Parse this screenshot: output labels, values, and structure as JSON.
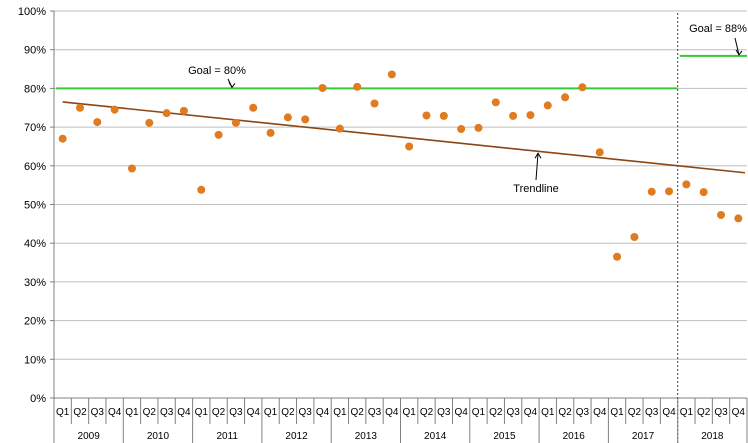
{
  "chart_data": {
    "type": "scatter",
    "y_axis": {
      "ticks": [
        "0%",
        "10%",
        "20%",
        "30%",
        "40%",
        "50%",
        "60%",
        "70%",
        "80%",
        "90%",
        "100%"
      ],
      "ylim": [
        0,
        100
      ],
      "grid": true
    },
    "quarters": [
      "Q1",
      "Q2",
      "Q3",
      "Q4"
    ],
    "years": [
      "2009",
      "2010",
      "2011",
      "2012",
      "2013",
      "2014",
      "2015",
      "2016",
      "2017",
      "2018"
    ],
    "series": [
      {
        "color": "#E07B1F",
        "values": [
          67.0,
          75.0,
          71.3,
          74.5,
          59.3,
          71.1,
          73.6,
          74.2,
          53.8,
          68.0,
          71.1,
          75.0,
          68.5,
          72.5,
          72.0,
          80.1,
          69.6,
          80.4,
          76.1,
          83.6,
          65.0,
          73.0,
          72.9,
          69.5,
          69.8,
          76.4,
          72.9,
          73.1,
          75.6,
          77.7,
          80.3,
          63.5,
          36.5,
          41.6,
          53.3,
          53.4,
          55.2,
          53.2,
          47.3,
          46.4
        ]
      }
    ],
    "trendline": {
      "label": "Trendline",
      "color": "#8B4513",
      "start": 76.5,
      "end": 58.2
    },
    "goals": [
      {
        "label": "Goal = 80%",
        "value": 80,
        "from_quarter": 1,
        "to_quarter": 36,
        "color": "#33CC33"
      },
      {
        "label": "Goal = 88%",
        "value": 88.4,
        "from_quarter": 37,
        "to_quarter": 40,
        "color": "#33CC33"
      }
    ],
    "divider_after_quarter": 36
  }
}
